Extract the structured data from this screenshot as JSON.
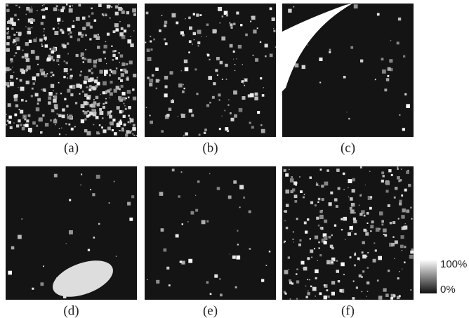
{
  "panels": [
    {
      "label": "(a)"
    },
    {
      "label": "(b)"
    },
    {
      "label": "(c)"
    },
    {
      "label": "(d)"
    },
    {
      "label": "(e)"
    },
    {
      "label": "(f)"
    }
  ],
  "colorbar": {
    "max_label": "100%",
    "min_label": "0%"
  }
}
